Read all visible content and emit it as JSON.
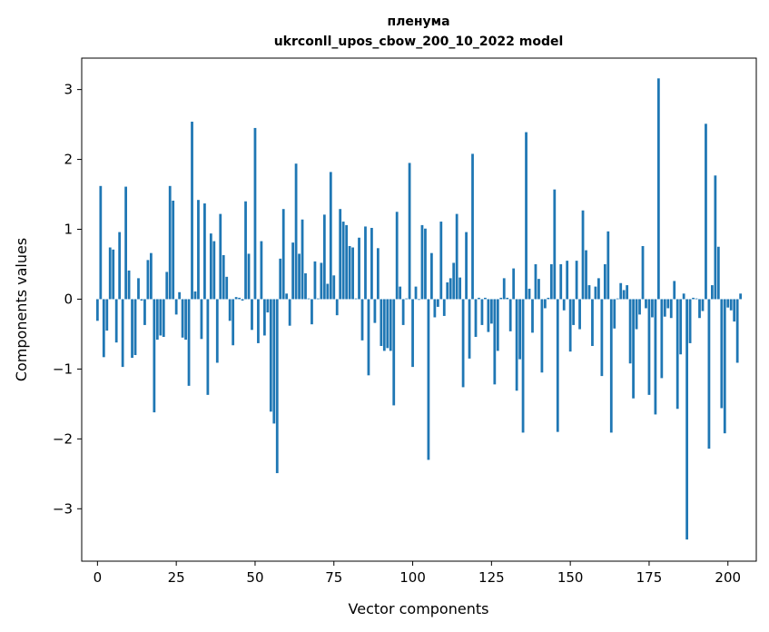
{
  "chart_data": {
    "type": "bar",
    "title": "пленума",
    "subtitle": "ukrconll_upos_cbow_200_10_2022 model",
    "xlabel": "Vector components",
    "ylabel": "Components values",
    "xlim": [
      -5,
      209
    ],
    "ylim": [
      -3.75,
      3.45
    ],
    "xticks": [
      0,
      25,
      50,
      75,
      100,
      125,
      150,
      175,
      200
    ],
    "yticks": [
      -3,
      -2,
      -1,
      0,
      1,
      2,
      3
    ],
    "xtick_labels": [
      "0",
      "25",
      "50",
      "75",
      "100",
      "125",
      "150",
      "175",
      "200"
    ],
    "ytick_labels": [
      "−3",
      "−2",
      "−1",
      "0",
      "1",
      "2",
      "3"
    ],
    "grid": false,
    "bar_color": "#1f77b4",
    "values": [
      -0.31,
      1.62,
      -0.83,
      -0.45,
      0.74,
      0.71,
      -0.62,
      0.96,
      -0.97,
      1.61,
      0.41,
      -0.84,
      -0.8,
      0.3,
      -0.02,
      -0.37,
      0.56,
      0.66,
      -1.62,
      -0.58,
      -0.52,
      -0.54,
      0.39,
      1.62,
      1.41,
      -0.22,
      0.1,
      -0.55,
      -0.58,
      -1.24,
      2.54,
      0.11,
      1.42,
      -0.57,
      1.37,
      -1.37,
      0.94,
      0.83,
      -0.91,
      1.22,
      0.63,
      0.32,
      -0.31,
      -0.66,
      0.03,
      0.02,
      -0.02,
      1.4,
      0.65,
      -0.44,
      2.45,
      -0.63,
      0.83,
      -0.52,
      -0.19,
      -1.61,
      -1.78,
      -2.49,
      0.58,
      1.29,
      0.08,
      -0.38,
      0.81,
      1.94,
      0.65,
      1.14,
      0.37,
      0.01,
      -0.36,
      0.54,
      0.01,
      0.52,
      1.21,
      0.22,
      1.82,
      0.34,
      -0.23,
      1.29,
      1.11,
      1.06,
      0.76,
      0.74,
      0.01,
      0.88,
      -0.59,
      1.04,
      -1.09,
      1.02,
      -0.34,
      0.73,
      -0.67,
      -0.74,
      -0.7,
      -0.74,
      -1.52,
      1.25,
      0.18,
      -0.37,
      0.01,
      1.95,
      -0.97,
      0.18,
      -0.01,
      1.06,
      1.01,
      -2.3,
      0.66,
      -0.26,
      -0.11,
      1.11,
      -0.24,
      0.24,
      0.3,
      0.52,
      1.22,
      0.31,
      -1.26,
      0.96,
      -0.85,
      2.08,
      -0.54,
      0.02,
      -0.37,
      0.02,
      -0.47,
      -0.35,
      -1.22,
      -0.74,
      0.02,
      0.3,
      0.02,
      -0.46,
      0.44,
      -1.31,
      -0.86,
      -1.91,
      2.39,
      0.15,
      -0.48,
      0.5,
      0.29,
      -1.05,
      -0.13,
      0.02,
      0.5,
      1.57,
      -1.9,
      0.5,
      -0.16,
      0.55,
      -0.75,
      -0.37,
      0.55,
      -0.43,
      1.27,
      0.7,
      0.2,
      -0.67,
      0.18,
      0.3,
      -1.1,
      0.5,
      0.97,
      -1.91,
      -0.42,
      0.01,
      0.23,
      0.13,
      0.2,
      -0.92,
      -1.42,
      -0.43,
      -0.22,
      0.76,
      -0.13,
      -1.37,
      -0.26,
      -1.65,
      3.16,
      -1.13,
      -0.25,
      -0.13,
      -0.27,
      0.26,
      -1.57,
      -0.79,
      0.08,
      -3.44,
      -0.63,
      0.02,
      0.01,
      -0.27,
      -0.17,
      2.51,
      -2.14,
      0.2,
      1.77,
      0.75,
      -1.56,
      -1.92,
      -0.12,
      -0.16,
      -0.32,
      -0.91,
      0.08
    ]
  }
}
